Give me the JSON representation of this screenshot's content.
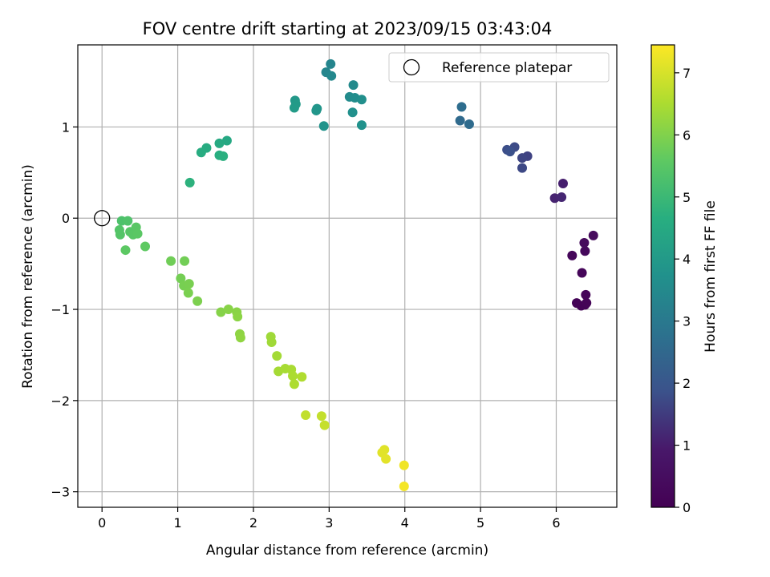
{
  "chart_data": {
    "type": "scatter",
    "title": "FOV centre drift starting at 2023/09/15 03:43:04",
    "xlabel": "Angular distance from reference (arcmin)",
    "ylabel": "Rotation from reference (arcmin)",
    "colorbar_label": "Hours from first FF file",
    "colormap": "viridis",
    "xlim": [
      -0.32,
      6.8
    ],
    "ylim": [
      -3.17,
      1.9
    ],
    "clim": [
      0,
      7.45
    ],
    "xticks": [
      0,
      1,
      2,
      3,
      4,
      5,
      6
    ],
    "yticks": [
      -3,
      -2,
      -1,
      0,
      1
    ],
    "cticks": [
      0,
      1,
      2,
      3,
      4,
      5,
      6,
      7
    ],
    "grid": true,
    "legend": {
      "position": "top-right",
      "label": "Reference platepar"
    },
    "reference": {
      "x": 0,
      "y": 0
    },
    "points": [
      {
        "x": 6.38,
        "y": -0.95,
        "c": 0.05
      },
      {
        "x": 6.33,
        "y": -0.96,
        "c": 0.08
      },
      {
        "x": 6.27,
        "y": -0.93,
        "c": 0.1
      },
      {
        "x": 6.4,
        "y": -0.93,
        "c": 0.12
      },
      {
        "x": 6.39,
        "y": -0.84,
        "c": 0.15
      },
      {
        "x": 6.34,
        "y": -0.6,
        "c": 0.2
      },
      {
        "x": 6.21,
        "y": -0.41,
        "c": 0.25
      },
      {
        "x": 6.38,
        "y": -0.36,
        "c": 0.3
      },
      {
        "x": 6.37,
        "y": -0.27,
        "c": 0.35
      },
      {
        "x": 6.49,
        "y": -0.19,
        "c": 0.4
      },
      {
        "x": 6.09,
        "y": 0.38,
        "c": 1.05
      },
      {
        "x": 5.98,
        "y": 0.22,
        "c": 1.1
      },
      {
        "x": 6.07,
        "y": 0.23,
        "c": 1.15
      },
      {
        "x": 5.62,
        "y": 0.68,
        "c": 1.6
      },
      {
        "x": 5.55,
        "y": 0.66,
        "c": 1.65
      },
      {
        "x": 5.55,
        "y": 0.55,
        "c": 1.7
      },
      {
        "x": 5.45,
        "y": 0.78,
        "c": 1.75
      },
      {
        "x": 5.35,
        "y": 0.75,
        "c": 1.8
      },
      {
        "x": 5.39,
        "y": 0.73,
        "c": 1.85
      },
      {
        "x": 4.73,
        "y": 1.07,
        "c": 2.55
      },
      {
        "x": 4.85,
        "y": 1.03,
        "c": 2.6
      },
      {
        "x": 4.75,
        "y": 1.22,
        "c": 2.65
      },
      {
        "x": 3.02,
        "y": 1.69,
        "c": 3.35
      },
      {
        "x": 2.96,
        "y": 1.6,
        "c": 3.4
      },
      {
        "x": 3.03,
        "y": 1.56,
        "c": 3.45
      },
      {
        "x": 3.32,
        "y": 1.46,
        "c": 3.5
      },
      {
        "x": 3.27,
        "y": 1.33,
        "c": 3.55
      },
      {
        "x": 3.34,
        "y": 1.32,
        "c": 3.6
      },
      {
        "x": 3.43,
        "y": 1.3,
        "c": 3.65
      },
      {
        "x": 3.31,
        "y": 1.16,
        "c": 3.7
      },
      {
        "x": 3.43,
        "y": 1.02,
        "c": 3.75
      },
      {
        "x": 2.93,
        "y": 1.01,
        "c": 3.8
      },
      {
        "x": 2.84,
        "y": 1.2,
        "c": 3.85
      },
      {
        "x": 2.83,
        "y": 1.18,
        "c": 3.9
      },
      {
        "x": 2.55,
        "y": 1.29,
        "c": 3.95
      },
      {
        "x": 2.56,
        "y": 1.25,
        "c": 4.0
      },
      {
        "x": 2.54,
        "y": 1.21,
        "c": 4.05
      },
      {
        "x": 1.65,
        "y": 0.85,
        "c": 4.45
      },
      {
        "x": 1.55,
        "y": 0.82,
        "c": 4.5
      },
      {
        "x": 1.38,
        "y": 0.77,
        "c": 4.55
      },
      {
        "x": 1.31,
        "y": 0.72,
        "c": 4.6
      },
      {
        "x": 1.55,
        "y": 0.69,
        "c": 4.65
      },
      {
        "x": 1.6,
        "y": 0.68,
        "c": 4.7
      },
      {
        "x": 1.16,
        "y": 0.39,
        "c": 4.75
      },
      {
        "x": 0.26,
        "y": -0.03,
        "c": 5.3
      },
      {
        "x": 0.34,
        "y": -0.03,
        "c": 5.35
      },
      {
        "x": 0.23,
        "y": -0.13,
        "c": 5.4
      },
      {
        "x": 0.24,
        "y": -0.18,
        "c": 5.42
      },
      {
        "x": 0.37,
        "y": -0.15,
        "c": 5.45
      },
      {
        "x": 0.41,
        "y": -0.18,
        "c": 5.48
      },
      {
        "x": 0.45,
        "y": -0.1,
        "c": 5.5
      },
      {
        "x": 0.47,
        "y": -0.17,
        "c": 5.52
      },
      {
        "x": 0.31,
        "y": -0.35,
        "c": 5.55
      },
      {
        "x": 0.57,
        "y": -0.31,
        "c": 5.58
      },
      {
        "x": 0.91,
        "y": -0.47,
        "c": 5.8
      },
      {
        "x": 1.09,
        "y": -0.47,
        "c": 5.82
      },
      {
        "x": 1.04,
        "y": -0.66,
        "c": 5.85
      },
      {
        "x": 1.08,
        "y": -0.74,
        "c": 5.88
      },
      {
        "x": 1.15,
        "y": -0.72,
        "c": 5.9
      },
      {
        "x": 1.14,
        "y": -0.82,
        "c": 5.92
      },
      {
        "x": 1.26,
        "y": -0.91,
        "c": 5.95
      },
      {
        "x": 1.57,
        "y": -1.03,
        "c": 6.05
      },
      {
        "x": 1.67,
        "y": -1.0,
        "c": 6.08
      },
      {
        "x": 1.78,
        "y": -1.03,
        "c": 6.1
      },
      {
        "x": 1.79,
        "y": -1.08,
        "c": 6.12
      },
      {
        "x": 1.82,
        "y": -1.27,
        "c": 6.15
      },
      {
        "x": 1.83,
        "y": -1.31,
        "c": 6.18
      },
      {
        "x": 2.23,
        "y": -1.3,
        "c": 6.35
      },
      {
        "x": 2.24,
        "y": -1.36,
        "c": 6.37
      },
      {
        "x": 2.31,
        "y": -1.51,
        "c": 6.4
      },
      {
        "x": 2.33,
        "y": -1.68,
        "c": 6.42
      },
      {
        "x": 2.42,
        "y": -1.65,
        "c": 6.45
      },
      {
        "x": 2.5,
        "y": -1.66,
        "c": 6.47
      },
      {
        "x": 2.52,
        "y": -1.73,
        "c": 6.5
      },
      {
        "x": 2.54,
        "y": -1.82,
        "c": 6.52
      },
      {
        "x": 2.64,
        "y": -1.74,
        "c": 6.55
      },
      {
        "x": 2.69,
        "y": -2.16,
        "c": 6.75
      },
      {
        "x": 2.9,
        "y": -2.17,
        "c": 6.78
      },
      {
        "x": 2.94,
        "y": -2.27,
        "c": 6.8
      },
      {
        "x": 3.73,
        "y": -2.54,
        "c": 7.1
      },
      {
        "x": 3.7,
        "y": -2.57,
        "c": 7.12
      },
      {
        "x": 3.75,
        "y": -2.64,
        "c": 7.15
      },
      {
        "x": 3.99,
        "y": -2.71,
        "c": 7.3
      },
      {
        "x": 3.99,
        "y": -2.94,
        "c": 7.35
      }
    ]
  }
}
